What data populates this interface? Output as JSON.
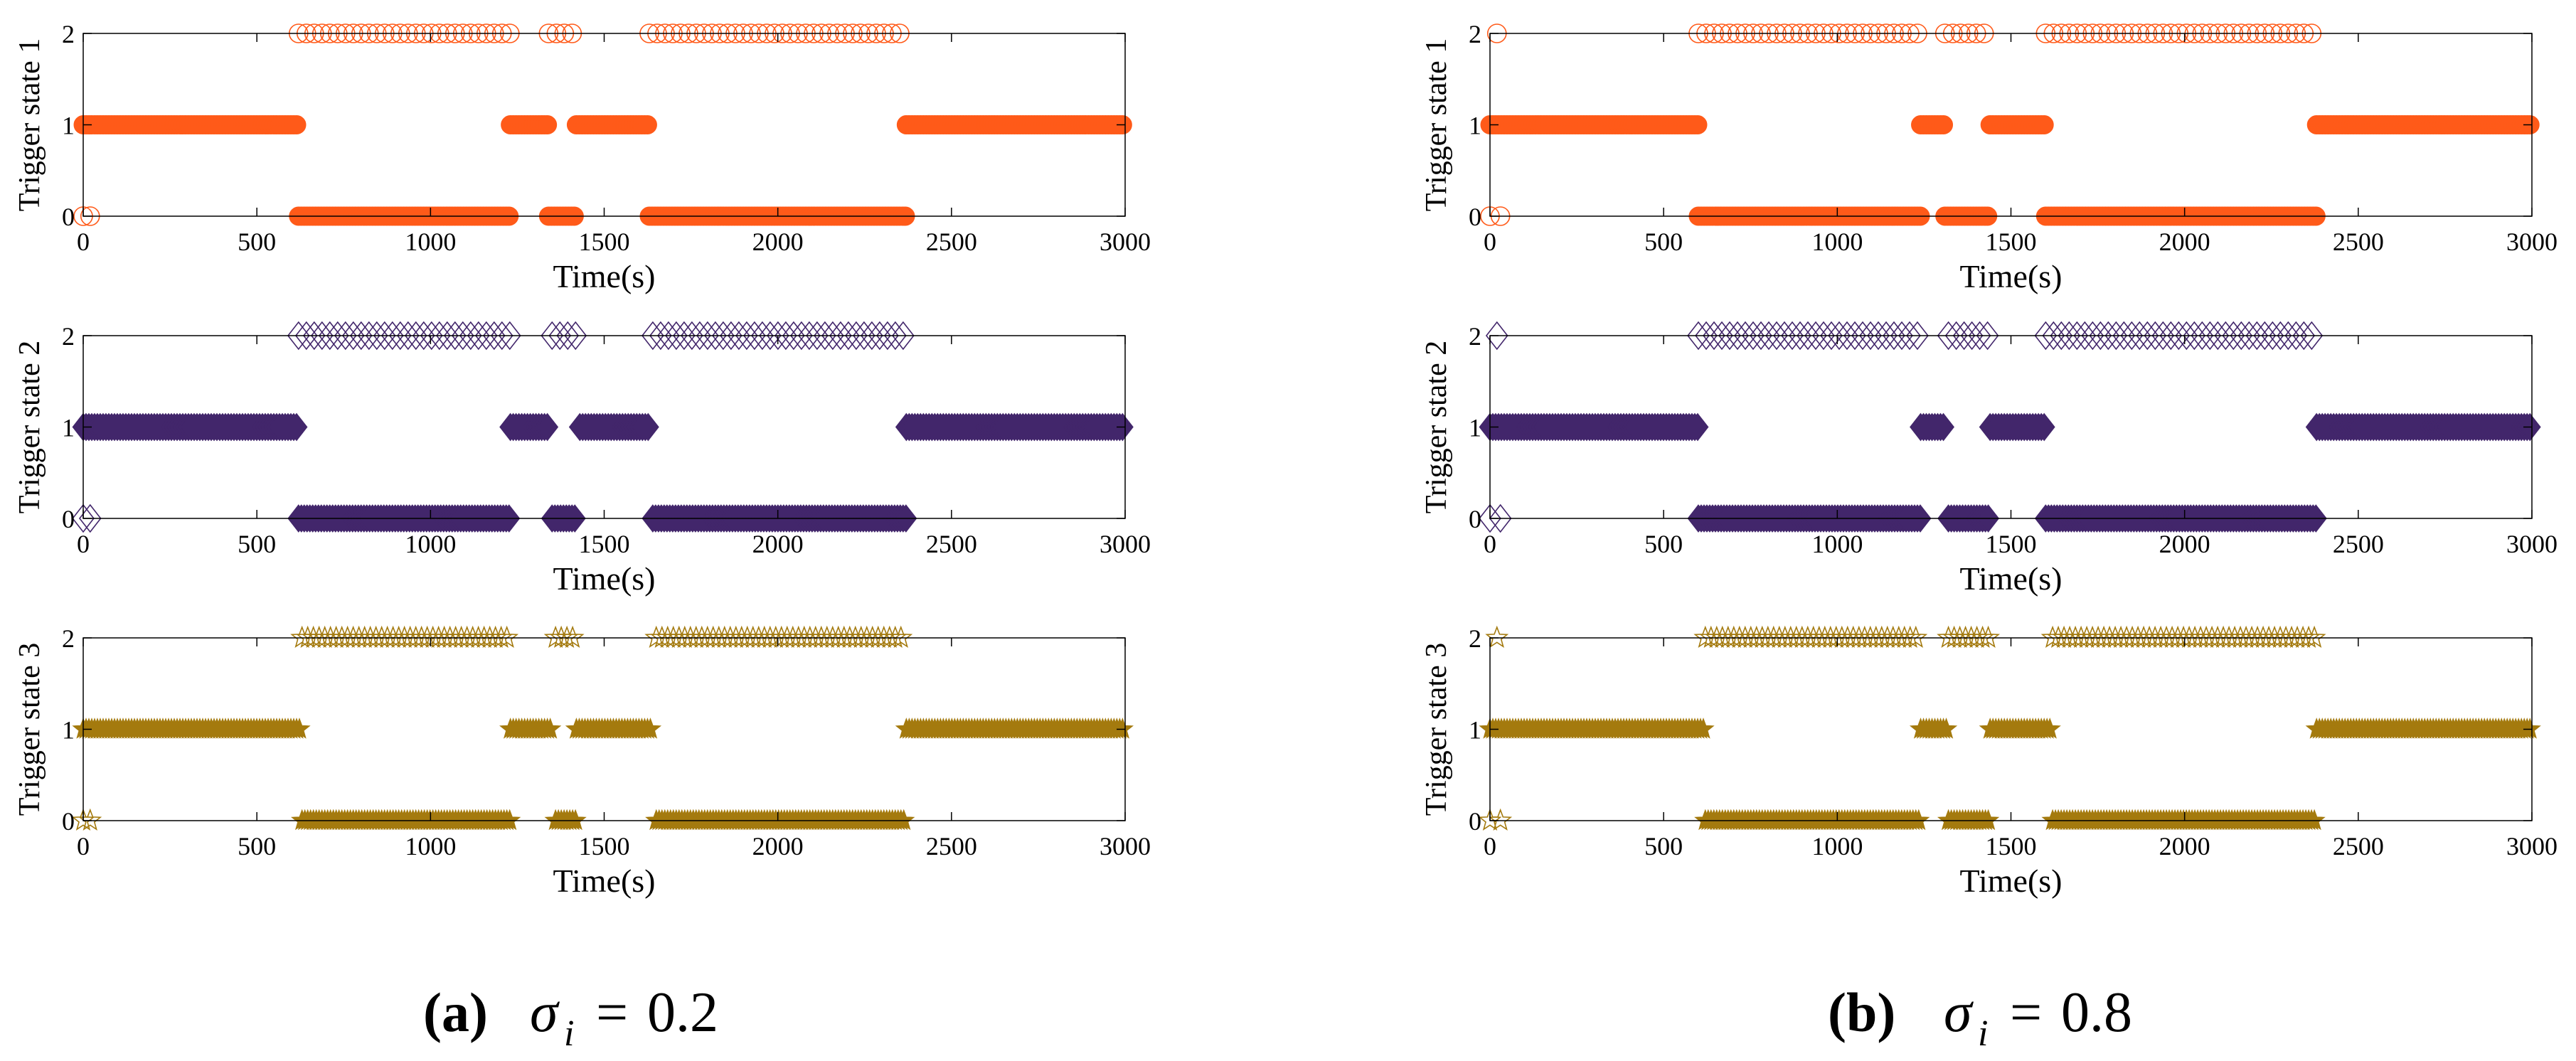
{
  "colors": {
    "state1": "#FF5A19",
    "state2": "#42266B",
    "state3": "#A47A0E",
    "axis": "#000000"
  },
  "markers": {
    "state1": "circle",
    "state2": "diamond",
    "state3": "star"
  },
  "captions": [
    {
      "label": "(a)",
      "symbol": "σ",
      "subscript": "i",
      "equals": "=",
      "value": "0.2"
    },
    {
      "label": "(b)",
      "symbol": "σ",
      "subscript": "i",
      "equals": "=",
      "value": "0.8"
    }
  ],
  "chart_data": [
    {
      "type": "scatter",
      "panel": "a",
      "ylabel": "Trigger state 1",
      "xlabel": "Time(s)",
      "xlim": [
        0,
        3000
      ],
      "ylim": [
        0,
        2
      ],
      "xticks": [
        0,
        500,
        1000,
        1500,
        2000,
        2500,
        3000
      ],
      "yticks": [
        0,
        1,
        2
      ],
      "marker": "circle",
      "color": "#FF5A19",
      "segments": [
        {
          "state": 0,
          "start": 0,
          "end": 20,
          "style": "sparse"
        },
        {
          "state": 1,
          "start": 0,
          "end": 620,
          "style": "dense"
        },
        {
          "state": 2,
          "start": 620,
          "end": 1230,
          "style": "hollow"
        },
        {
          "state": 0,
          "start": 620,
          "end": 1230,
          "style": "dense"
        },
        {
          "state": 1,
          "start": 1230,
          "end": 1340,
          "style": "dense"
        },
        {
          "state": 2,
          "start": 1340,
          "end": 1420,
          "style": "hollow"
        },
        {
          "state": 0,
          "start": 1340,
          "end": 1420,
          "style": "dense"
        },
        {
          "state": 1,
          "start": 1420,
          "end": 1630,
          "style": "dense"
        },
        {
          "state": 2,
          "start": 1630,
          "end": 2370,
          "style": "hollow"
        },
        {
          "state": 0,
          "start": 1630,
          "end": 2370,
          "style": "dense"
        },
        {
          "state": 1,
          "start": 2370,
          "end": 3000,
          "style": "dense"
        }
      ]
    },
    {
      "type": "scatter",
      "panel": "a",
      "ylabel": "Trigger state 2",
      "xlabel": "Time(s)",
      "xlim": [
        0,
        3000
      ],
      "ylim": [
        0,
        2
      ],
      "xticks": [
        0,
        500,
        1000,
        1500,
        2000,
        2500,
        3000
      ],
      "yticks": [
        0,
        1,
        2
      ],
      "marker": "diamond",
      "color": "#42266B",
      "segments": [
        {
          "state": 0,
          "start": 0,
          "end": 20,
          "style": "sparse"
        },
        {
          "state": 1,
          "start": 0,
          "end": 620,
          "style": "dense"
        },
        {
          "state": 2,
          "start": 620,
          "end": 1230,
          "style": "hollow"
        },
        {
          "state": 0,
          "start": 620,
          "end": 1230,
          "style": "dense"
        },
        {
          "state": 1,
          "start": 1230,
          "end": 1340,
          "style": "dense"
        },
        {
          "state": 2,
          "start": 1350,
          "end": 1420,
          "style": "hollow"
        },
        {
          "state": 0,
          "start": 1350,
          "end": 1420,
          "style": "dense"
        },
        {
          "state": 1,
          "start": 1430,
          "end": 1630,
          "style": "dense"
        },
        {
          "state": 2,
          "start": 1640,
          "end": 2370,
          "style": "hollow"
        },
        {
          "state": 0,
          "start": 1640,
          "end": 2370,
          "style": "dense"
        },
        {
          "state": 1,
          "start": 2370,
          "end": 3000,
          "style": "dense"
        }
      ]
    },
    {
      "type": "scatter",
      "panel": "a",
      "ylabel": "Trigger state 3",
      "xlabel": "Time(s)",
      "xlim": [
        0,
        3000
      ],
      "ylim": [
        0,
        2
      ],
      "xticks": [
        0,
        500,
        1000,
        1500,
        2000,
        2500,
        3000
      ],
      "yticks": [
        0,
        1,
        2
      ],
      "marker": "star",
      "color": "#A47A0E",
      "segments": [
        {
          "state": 0,
          "start": 0,
          "end": 20,
          "style": "sparse"
        },
        {
          "state": 1,
          "start": 0,
          "end": 630,
          "style": "dense"
        },
        {
          "state": 2,
          "start": 630,
          "end": 1230,
          "style": "hollow"
        },
        {
          "state": 0,
          "start": 630,
          "end": 1230,
          "style": "dense"
        },
        {
          "state": 1,
          "start": 1230,
          "end": 1350,
          "style": "dense"
        },
        {
          "state": 2,
          "start": 1360,
          "end": 1420,
          "style": "hollow"
        },
        {
          "state": 0,
          "start": 1360,
          "end": 1420,
          "style": "dense"
        },
        {
          "state": 1,
          "start": 1420,
          "end": 1640,
          "style": "dense"
        },
        {
          "state": 2,
          "start": 1650,
          "end": 2370,
          "style": "hollow"
        },
        {
          "state": 0,
          "start": 1650,
          "end": 2370,
          "style": "dense"
        },
        {
          "state": 1,
          "start": 2370,
          "end": 3000,
          "style": "dense"
        }
      ]
    },
    {
      "type": "scatter",
      "panel": "b",
      "ylabel": "Trigger state 1",
      "xlabel": "Time(s)",
      "xlim": [
        0,
        3000
      ],
      "ylim": [
        0,
        2
      ],
      "xticks": [
        0,
        500,
        1000,
        1500,
        2000,
        2500,
        3000
      ],
      "yticks": [
        0,
        1,
        2
      ],
      "marker": "circle",
      "color": "#FF5A19",
      "segments": [
        {
          "state": 2,
          "start": 20,
          "end": 20,
          "style": "hollow"
        },
        {
          "state": 0,
          "start": 0,
          "end": 30,
          "style": "sparse"
        },
        {
          "state": 1,
          "start": 0,
          "end": 600,
          "style": "dense"
        },
        {
          "state": 2,
          "start": 600,
          "end": 1240,
          "style": "hollow"
        },
        {
          "state": 0,
          "start": 600,
          "end": 1240,
          "style": "dense"
        },
        {
          "state": 1,
          "start": 1240,
          "end": 1310,
          "style": "dense"
        },
        {
          "state": 2,
          "start": 1310,
          "end": 1440,
          "style": "hollow"
        },
        {
          "state": 0,
          "start": 1310,
          "end": 1440,
          "style": "dense"
        },
        {
          "state": 1,
          "start": 1440,
          "end": 1600,
          "style": "dense"
        },
        {
          "state": 2,
          "start": 1600,
          "end": 2380,
          "style": "hollow"
        },
        {
          "state": 0,
          "start": 1600,
          "end": 2380,
          "style": "dense"
        },
        {
          "state": 1,
          "start": 2380,
          "end": 3000,
          "style": "dense"
        }
      ]
    },
    {
      "type": "scatter",
      "panel": "b",
      "ylabel": "Trigger state 2",
      "xlabel": "Time(s)",
      "xlim": [
        0,
        3000
      ],
      "ylim": [
        0,
        2
      ],
      "xticks": [
        0,
        500,
        1000,
        1500,
        2000,
        2500,
        3000
      ],
      "yticks": [
        0,
        1,
        2
      ],
      "marker": "diamond",
      "color": "#42266B",
      "segments": [
        {
          "state": 2,
          "start": 20,
          "end": 20,
          "style": "hollow"
        },
        {
          "state": 0,
          "start": 0,
          "end": 30,
          "style": "sparse"
        },
        {
          "state": 1,
          "start": 0,
          "end": 600,
          "style": "dense"
        },
        {
          "state": 2,
          "start": 600,
          "end": 1240,
          "style": "hollow"
        },
        {
          "state": 0,
          "start": 600,
          "end": 1240,
          "style": "dense"
        },
        {
          "state": 1,
          "start": 1240,
          "end": 1310,
          "style": "dense"
        },
        {
          "state": 2,
          "start": 1320,
          "end": 1440,
          "style": "hollow"
        },
        {
          "state": 0,
          "start": 1320,
          "end": 1440,
          "style": "dense"
        },
        {
          "state": 1,
          "start": 1440,
          "end": 1600,
          "style": "dense"
        },
        {
          "state": 2,
          "start": 1600,
          "end": 2380,
          "style": "hollow"
        },
        {
          "state": 0,
          "start": 1600,
          "end": 2380,
          "style": "dense"
        },
        {
          "state": 1,
          "start": 2380,
          "end": 3000,
          "style": "dense"
        }
      ]
    },
    {
      "type": "scatter",
      "panel": "b",
      "ylabel": "Trigger state 3",
      "xlabel": "Time(s)",
      "xlim": [
        0,
        3000
      ],
      "ylim": [
        0,
        2
      ],
      "xticks": [
        0,
        500,
        1000,
        1500,
        2000,
        2500,
        3000
      ],
      "yticks": [
        0,
        1,
        2
      ],
      "marker": "star",
      "color": "#A47A0E",
      "segments": [
        {
          "state": 2,
          "start": 20,
          "end": 20,
          "style": "hollow"
        },
        {
          "state": 0,
          "start": 0,
          "end": 30,
          "style": "sparse"
        },
        {
          "state": 1,
          "start": 0,
          "end": 620,
          "style": "dense"
        },
        {
          "state": 2,
          "start": 620,
          "end": 1240,
          "style": "hollow"
        },
        {
          "state": 0,
          "start": 620,
          "end": 1240,
          "style": "dense"
        },
        {
          "state": 1,
          "start": 1240,
          "end": 1320,
          "style": "dense"
        },
        {
          "state": 2,
          "start": 1320,
          "end": 1440,
          "style": "hollow"
        },
        {
          "state": 0,
          "start": 1320,
          "end": 1440,
          "style": "dense"
        },
        {
          "state": 1,
          "start": 1440,
          "end": 1620,
          "style": "dense"
        },
        {
          "state": 2,
          "start": 1620,
          "end": 2380,
          "style": "hollow"
        },
        {
          "state": 0,
          "start": 1620,
          "end": 2380,
          "style": "dense"
        },
        {
          "state": 1,
          "start": 2380,
          "end": 3000,
          "style": "dense"
        }
      ]
    }
  ]
}
